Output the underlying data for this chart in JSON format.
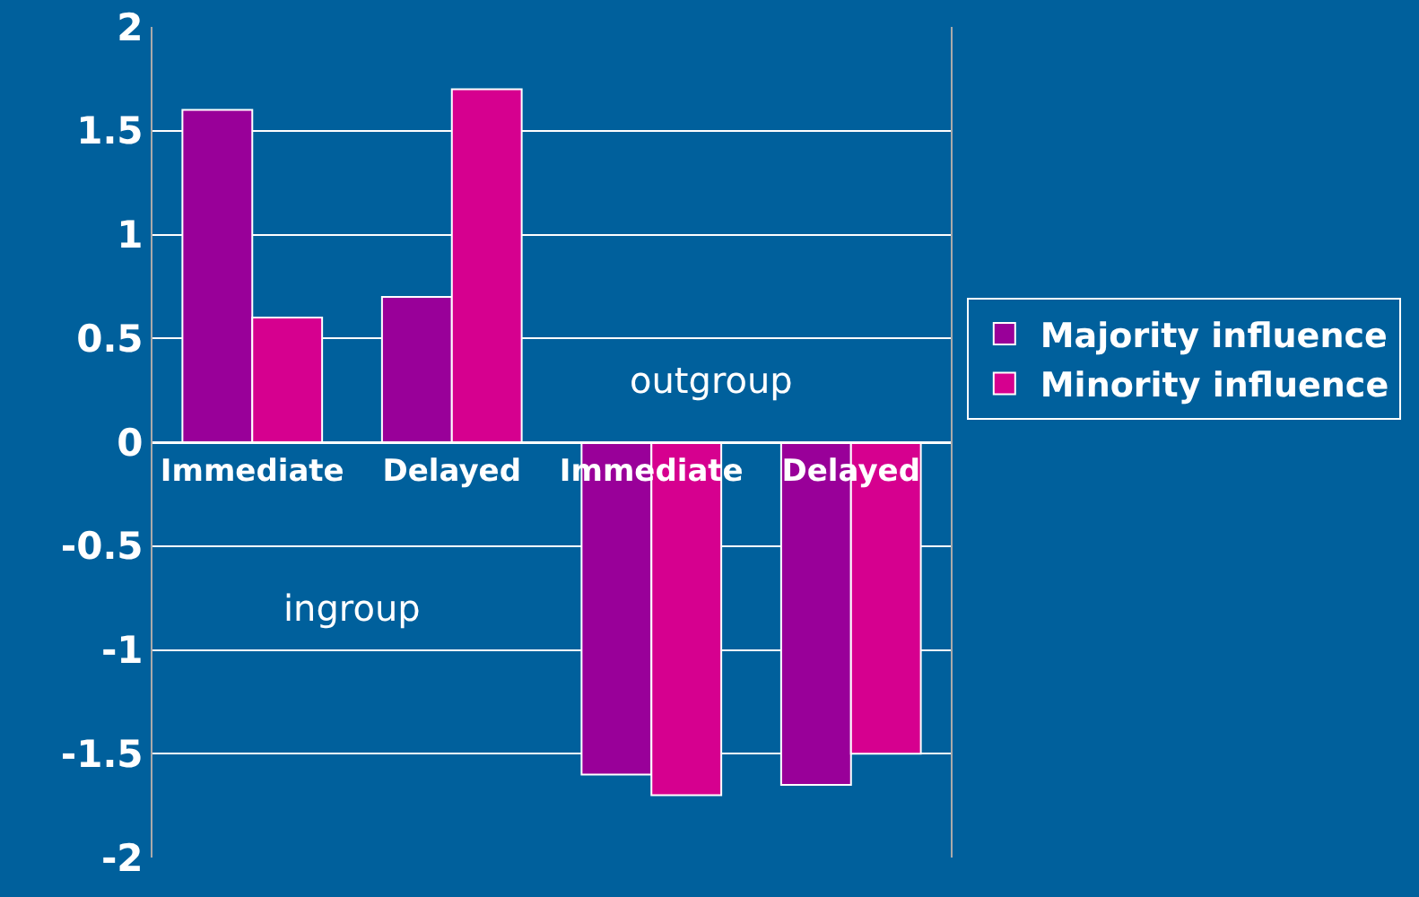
{
  "chart_data": {
    "type": "bar",
    "categories": [
      "Immediate",
      "Delayed",
      "Immediate",
      "Delayed"
    ],
    "series": [
      {
        "name": "Majority influence",
        "color": "#990099",
        "values": [
          1.6,
          0.7,
          -1.6,
          -1.65
        ]
      },
      {
        "name": "Minority influence",
        "color": "#d6008f",
        "values": [
          0.6,
          1.7,
          -1.7,
          -1.5
        ]
      }
    ],
    "ylim": [
      -2,
      2
    ],
    "yticks": [
      -2,
      -1.5,
      -1,
      -0.5,
      0,
      0.5,
      1,
      1.5,
      2
    ],
    "grid": "y",
    "legend": "right",
    "annotations": [
      "outgroup",
      "ingroup"
    ]
  }
}
